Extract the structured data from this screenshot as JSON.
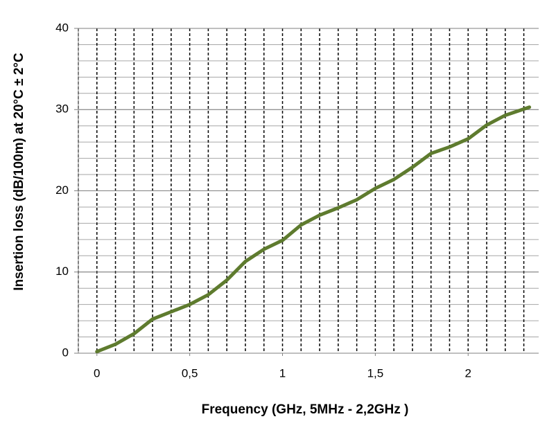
{
  "chart_data": {
    "type": "line",
    "x_label": "Frequency (GHz, 5MHz - 2,2GHz )",
    "y_label": "Insertion loss (dB/100m) at 20°C ± 2°C",
    "x": [
      0,
      0.1,
      0.2,
      0.3,
      0.4,
      0.5,
      0.6,
      0.7,
      0.8,
      0.9,
      1.0,
      1.1,
      1.2,
      1.3,
      1.4,
      1.5,
      1.6,
      1.7,
      1.8,
      1.9,
      2.0,
      2.1,
      2.2,
      2.33
    ],
    "series": [
      {
        "color": "#5e7b2e",
        "values": [
          0.2,
          1.1,
          2.4,
          4.2,
          5.1,
          6.0,
          7.2,
          9.0,
          11.3,
          12.8,
          13.9,
          15.8,
          17.0,
          17.9,
          18.9,
          20.3,
          21.4,
          22.9,
          24.6,
          25.4,
          26.4,
          28.1,
          29.3,
          30.3
        ]
      }
    ],
    "xlim": [
      -0.1,
      2.38
    ],
    "xticks": [
      0,
      {
        "value": 0.5,
        "label": "0,5"
      },
      1,
      {
        "value": 1.5,
        "label": "1,5"
      },
      2
    ],
    "ylim": [
      0,
      40
    ],
    "yticks": [
      0,
      10,
      20,
      30,
      40
    ],
    "y_minor_step": 2,
    "x_grid_step": 0.1
  }
}
